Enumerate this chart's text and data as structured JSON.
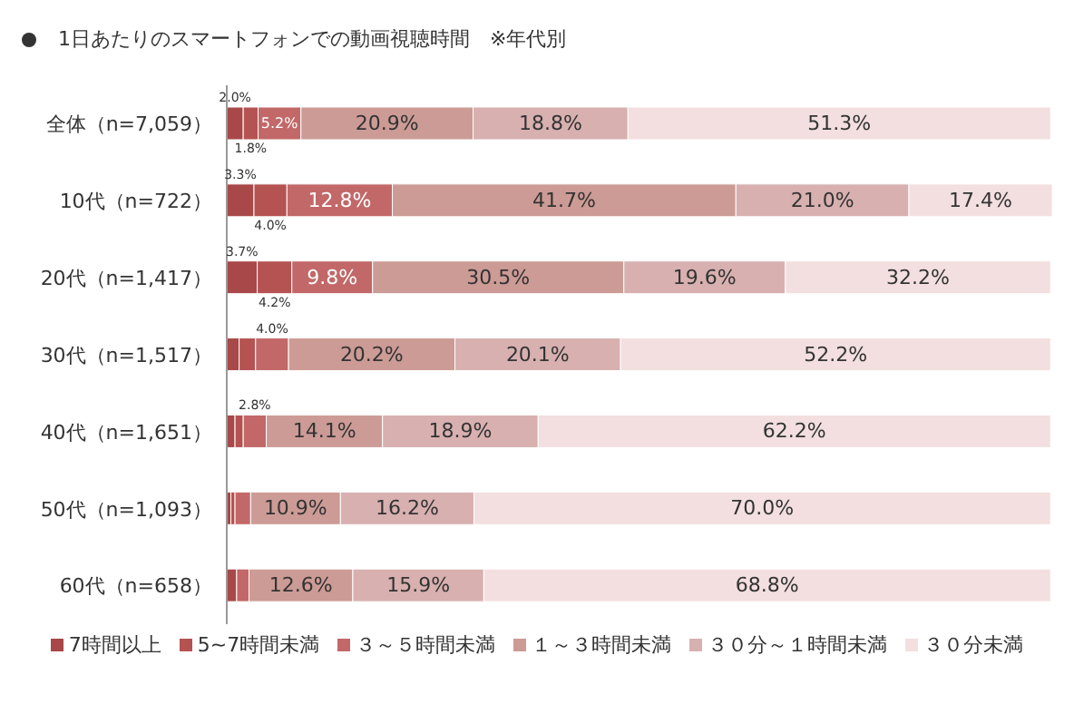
{
  "chart_data": {
    "type": "bar",
    "orientation": "horizontal",
    "stacked": true,
    "title": "1日あたりのスマートフォンでの動画視聴時間　※年代別",
    "categories": [
      "全体（n=7,059）",
      "10代（n=722）",
      "20代（n=1,417）",
      "30代（n=1,517）",
      "40代（n=1,651）",
      "50代（n=1,093）",
      "60代（n=658）"
    ],
    "series": [
      {
        "name": "7時間以上",
        "color": "#a84848",
        "values": [
          2.0,
          3.3,
          3.7,
          1.5,
          1.0,
          0.5,
          1.2
        ],
        "value_labels": [
          "2.0%",
          "3.3%",
          "3.7%",
          null,
          null,
          null,
          null
        ]
      },
      {
        "name": "5~7時間未満",
        "color": "#b55252",
        "values": [
          1.8,
          4.0,
          4.2,
          2.0,
          1.0,
          0.5,
          null
        ],
        "value_labels": [
          "1.8%",
          "4.0%",
          "4.2%",
          null,
          null,
          null,
          null
        ]
      },
      {
        "name": "３～５時間未満",
        "color": "#c26868",
        "values": [
          5.2,
          12.8,
          9.8,
          4.0,
          2.8,
          1.9,
          1.5
        ],
        "value_labels": [
          "5.2%",
          "12.8%",
          "9.8%",
          "4.0%",
          "2.8%",
          null,
          null
        ]
      },
      {
        "name": "１～３時間未満",
        "color": "#cc9b95",
        "values": [
          20.9,
          41.7,
          30.5,
          20.2,
          14.1,
          10.9,
          12.6
        ],
        "value_labels": [
          "20.9%",
          "41.7%",
          "30.5%",
          "20.2%",
          "14.1%",
          "10.9%",
          "12.6%"
        ]
      },
      {
        "name": "３０分～１時間未満",
        "color": "#d8b0b0",
        "values": [
          18.8,
          21.0,
          19.6,
          20.1,
          18.9,
          16.2,
          15.9
        ],
        "value_labels": [
          "18.8%",
          "21.0%",
          "19.6%",
          "20.1%",
          "18.9%",
          "16.2%",
          "15.9%"
        ]
      },
      {
        "name": "３０分未満",
        "color": "#f3dfdf",
        "values": [
          51.3,
          17.4,
          32.2,
          52.2,
          62.2,
          70.0,
          68.8
        ],
        "value_labels": [
          "51.3%",
          "17.4%",
          "32.2%",
          "52.2%",
          "62.2%",
          "70.0%",
          "68.8%"
        ]
      }
    ],
    "legend": "bottom"
  }
}
